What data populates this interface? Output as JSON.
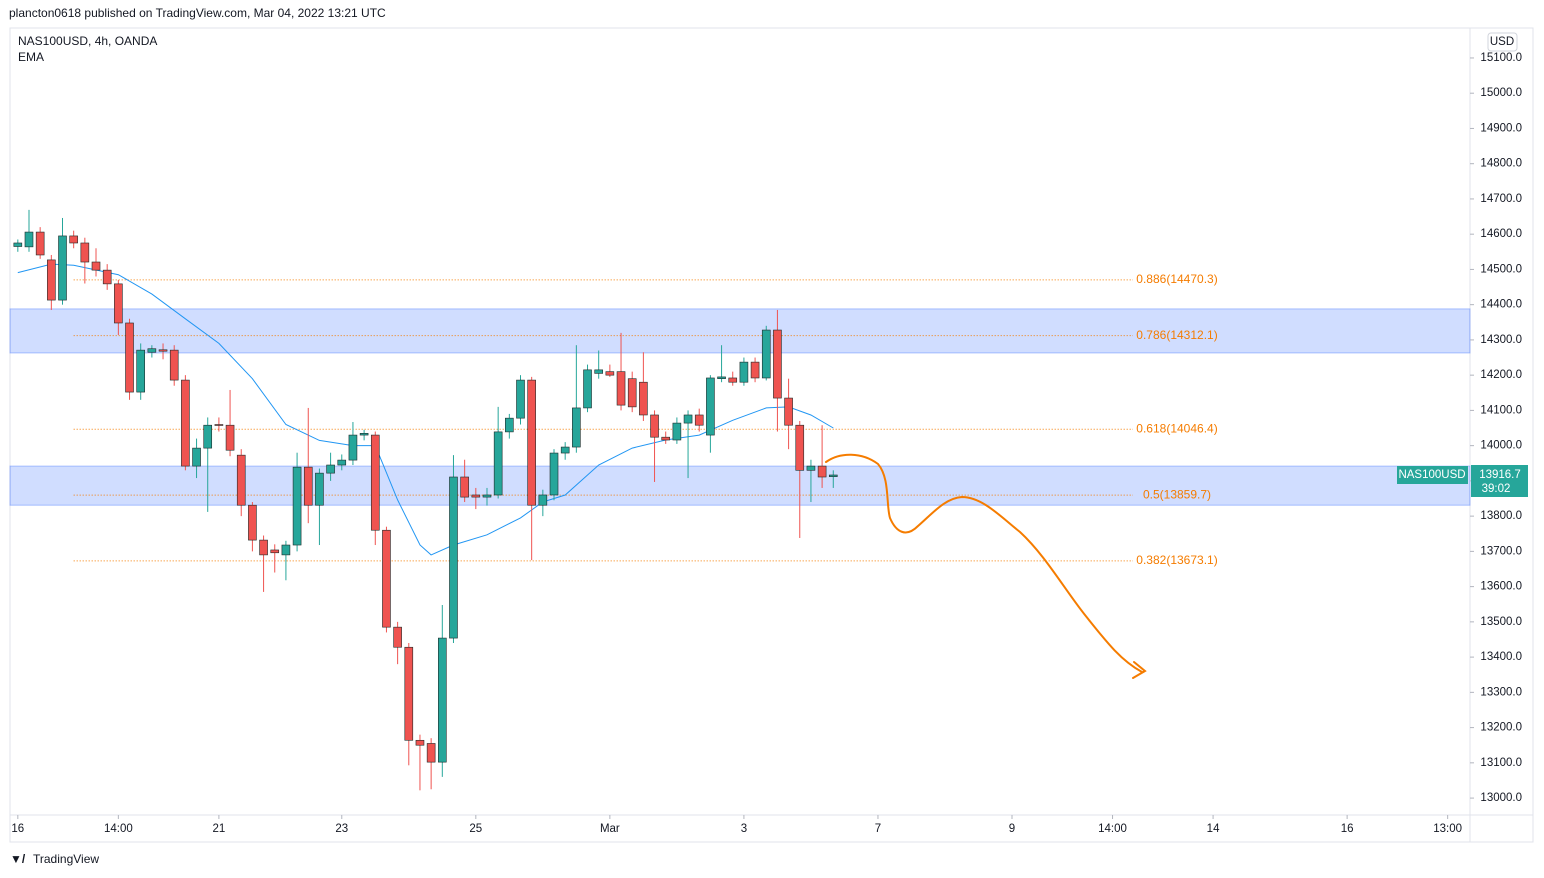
{
  "header": "plancton0618 published on TradingView.com, Mar 04, 2022 13:21 UTC",
  "footer": "TradingView",
  "chart_data": {
    "type": "candlestick",
    "symbol": "NAS100USD, 4h, OANDA",
    "indicator": "EMA",
    "currency": "USD",
    "ticker": "NAS100USD",
    "last_price": 13916.7,
    "countdown": "39:02",
    "up_color": "#26a69a",
    "down_color": "#ef5350",
    "ema_color": "#2196f3",
    "fib_color": "#f57c00",
    "zone_color": "rgba(41,98,255,0.22)",
    "ylim": [
      12952,
      15185
    ],
    "xlim": [
      -0.7,
      130
    ],
    "yticks": [
      {
        "value": 13000,
        "label": "13000.0"
      },
      {
        "value": 13100,
        "label": "13100.0"
      },
      {
        "value": 13200,
        "label": "13200.0"
      },
      {
        "value": 13300,
        "label": "13300.0"
      },
      {
        "value": 13400,
        "label": "13400.0"
      },
      {
        "value": 13500,
        "label": "13500.0"
      },
      {
        "value": 13600,
        "label": "13600.0"
      },
      {
        "value": 13700,
        "label": "13700.0"
      },
      {
        "value": 13800,
        "label": "13800.0"
      },
      {
        "value": 13900,
        "label": "13900.0"
      },
      {
        "value": 14000,
        "label": "14000.0"
      },
      {
        "value": 14100,
        "label": "14100.0"
      },
      {
        "value": 14200,
        "label": "14200.0"
      },
      {
        "value": 14300,
        "label": "14300.0"
      },
      {
        "value": 14400,
        "label": "14400.0"
      },
      {
        "value": 14500,
        "label": "14500.0"
      },
      {
        "value": 14600,
        "label": "14600.0"
      },
      {
        "value": 14700,
        "label": "14700.0"
      },
      {
        "value": 14800,
        "label": "14800.0"
      },
      {
        "value": 14900,
        "label": "14900.0"
      },
      {
        "value": 15000,
        "label": "15000.0"
      },
      {
        "value": 15100,
        "label": "15100.0"
      }
    ],
    "xticks": [
      {
        "value": 0,
        "label": "16"
      },
      {
        "value": 9,
        "label": "14:00"
      },
      {
        "value": 18,
        "label": "21"
      },
      {
        "value": 29,
        "label": "23"
      },
      {
        "value": 41,
        "label": "25"
      },
      {
        "value": 53,
        "label": "Mar"
      },
      {
        "value": 65,
        "label": "3"
      },
      {
        "value": 77,
        "label": "7"
      },
      {
        "value": 89,
        "label": "9"
      },
      {
        "value": 98,
        "label": "14:00"
      },
      {
        "value": 107,
        "label": "14"
      },
      {
        "value": 119,
        "label": "16"
      },
      {
        "value": 128,
        "label": "13:00"
      }
    ],
    "ohlc": [
      [
        14565,
        14585,
        14550,
        14575
      ],
      [
        14564,
        14669,
        14550,
        14606
      ],
      [
        14606,
        14620,
        14530,
        14541
      ],
      [
        14527,
        14541,
        14385,
        14413
      ],
      [
        14413,
        14646,
        14400,
        14595
      ],
      [
        14595,
        14610,
        14560,
        14575
      ],
      [
        14575,
        14590,
        14460,
        14521
      ],
      [
        14521,
        14560,
        14480,
        14498
      ],
      [
        14498,
        14515,
        14442,
        14459
      ],
      [
        14459,
        14470,
        14314,
        14348
      ],
      [
        14348,
        14360,
        14130,
        14152
      ],
      [
        14152,
        14290,
        14130,
        14271
      ],
      [
        14265,
        14285,
        14250,
        14275
      ],
      [
        14272,
        14290,
        14245,
        14268
      ],
      [
        14271,
        14285,
        14170,
        14186
      ],
      [
        14186,
        14200,
        13930,
        13942
      ],
      [
        13942,
        14020,
        13908,
        13993
      ],
      [
        13993,
        14080,
        13812,
        14058
      ],
      [
        14060,
        14080,
        14040,
        14058
      ],
      [
        14058,
        14158,
        13970,
        13987
      ],
      [
        13973,
        13990,
        13800,
        13831
      ],
      [
        13831,
        13840,
        13700,
        13732
      ],
      [
        13732,
        13745,
        13585,
        13690
      ],
      [
        13704,
        13720,
        13640,
        13696
      ],
      [
        13690,
        13730,
        13618,
        13718
      ],
      [
        13718,
        13980,
        13700,
        13939
      ],
      [
        13939,
        14107,
        13780,
        13831
      ],
      [
        13831,
        13935,
        13718,
        13922
      ],
      [
        13922,
        13980,
        13900,
        13945
      ],
      [
        13945,
        13975,
        13930,
        13959
      ],
      [
        13959,
        14067,
        13945,
        14030
      ],
      [
        14030,
        14045,
        14015,
        14035
      ],
      [
        14030,
        14040,
        13718,
        13760
      ],
      [
        13760,
        13770,
        13470,
        13485
      ],
      [
        13485,
        13500,
        13380,
        13428
      ],
      [
        13428,
        13440,
        13093,
        13164
      ],
      [
        13164,
        13180,
        13022,
        13150
      ],
      [
        13155,
        13170,
        13025,
        13102
      ],
      [
        13102,
        13548,
        13060,
        13454
      ],
      [
        13454,
        13973,
        13440,
        13911
      ],
      [
        13911,
        13960,
        13840,
        13854
      ],
      [
        13860,
        13880,
        13820,
        13854
      ],
      [
        13854,
        13880,
        13830,
        13860
      ],
      [
        13860,
        14110,
        13850,
        14039
      ],
      [
        14039,
        14090,
        14020,
        14078
      ],
      [
        14078,
        14200,
        14060,
        14186
      ],
      [
        14186,
        14195,
        13675,
        13831
      ],
      [
        13831,
        13875,
        13800,
        13860
      ],
      [
        13860,
        13990,
        13845,
        13979
      ],
      [
        13979,
        14010,
        13960,
        13996
      ],
      [
        13996,
        14285,
        13980,
        14107
      ],
      [
        14107,
        14230,
        14095,
        14215
      ],
      [
        14205,
        14270,
        14190,
        14215
      ],
      [
        14210,
        14230,
        14195,
        14200
      ],
      [
        14210,
        14320,
        14100,
        14115
      ],
      [
        14190,
        14210,
        14095,
        14110
      ],
      [
        14180,
        14265,
        14070,
        14087
      ],
      [
        14087,
        14100,
        13897,
        14024
      ],
      [
        14024,
        14040,
        14005,
        14016
      ],
      [
        14016,
        14080,
        14005,
        14064
      ],
      [
        14064,
        14100,
        13908,
        14087
      ],
      [
        14087,
        14105,
        14040,
        14058
      ],
      [
        14030,
        14200,
        13980,
        14192
      ],
      [
        14190,
        14285,
        14180,
        14195
      ],
      [
        14192,
        14210,
        14170,
        14180
      ],
      [
        14180,
        14250,
        14170,
        14237
      ],
      [
        14237,
        14250,
        14180,
        14192
      ],
      [
        14192,
        14340,
        14185,
        14328
      ],
      [
        14328,
        14385,
        14040,
        14135
      ],
      [
        14135,
        14190,
        13990,
        14058
      ],
      [
        14058,
        14070,
        13738,
        13930
      ],
      [
        13930,
        13960,
        13840,
        13942
      ],
      [
        13942,
        14058,
        13880,
        13911
      ],
      [
        13912,
        13930,
        13880,
        13916.7
      ]
    ],
    "ema": {
      "x": [
        0,
        3,
        5,
        9,
        12,
        15,
        18,
        21,
        24,
        27,
        30,
        32,
        34,
        36,
        37,
        39,
        42,
        45,
        47,
        49,
        52,
        55,
        58,
        61,
        64,
        67,
        69,
        71,
        73
      ],
      "values": [
        14491,
        14515,
        14512,
        14485,
        14430,
        14360,
        14290,
        14190,
        14060,
        14015,
        14000,
        14000,
        13846,
        13718,
        13690,
        13718,
        13747,
        13795,
        13840,
        13860,
        13945,
        13993,
        14016,
        14030,
        14072,
        14107,
        14110,
        14087,
        14050
      ]
    },
    "zones": [
      {
        "top": 14388,
        "bottom": 14263
      },
      {
        "top": 13942,
        "bottom": 13831
      }
    ],
    "fib_levels": [
      {
        "value": 14470.3,
        "label": "0.886(14470.3)"
      },
      {
        "value": 14312.1,
        "label": "0.786(14312.1)"
      },
      {
        "value": 14046.4,
        "label": "0.618(14046.4)"
      },
      {
        "value": 13859.7,
        "label": "0.5(13859.7)"
      },
      {
        "value": 13673.1,
        "label": "0.382(13673.1)"
      }
    ]
  }
}
